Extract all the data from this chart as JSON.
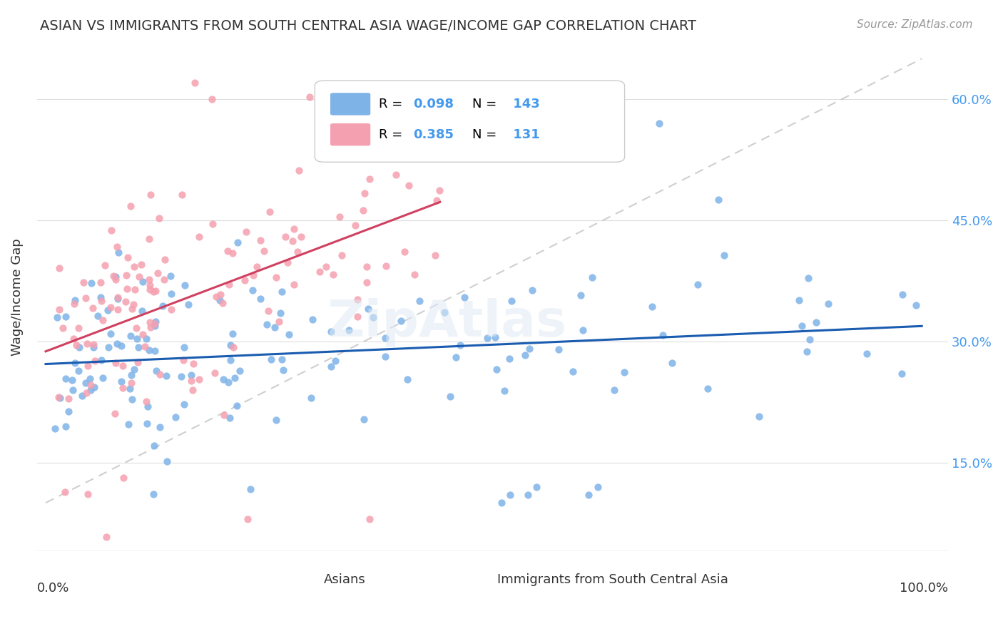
{
  "title": "ASIAN VS IMMIGRANTS FROM SOUTH CENTRAL ASIA WAGE/INCOME GAP CORRELATION CHART",
  "source": "Source: ZipAtlas.com",
  "ylabel": "Wage/Income Gap",
  "yticks": [
    "15.0%",
    "30.0%",
    "45.0%",
    "60.0%"
  ],
  "ytick_values": [
    0.15,
    0.3,
    0.45,
    0.6
  ],
  "legend_label_blue": "Asians",
  "legend_label_pink": "Immigrants from South Central Asia",
  "R_blue": 0.098,
  "N_blue": 143,
  "R_pink": 0.385,
  "N_pink": 131,
  "blue_color": "#7EB3E8",
  "pink_color": "#F5A0B0",
  "trend_blue": "#1A5CB0",
  "trend_pink": "#D04060",
  "trend_dashed": "#BBBBBB",
  "background_color": "#FFFFFF",
  "watermark": "ZipAtlas"
}
